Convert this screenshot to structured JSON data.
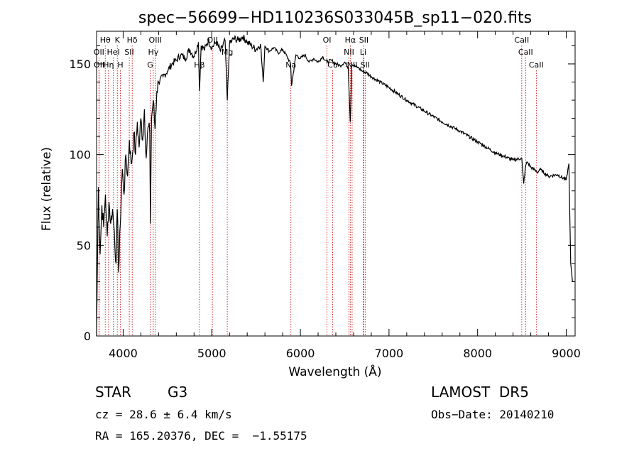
{
  "chart_data": {
    "type": "line",
    "title": "spec−56699−HD110236S033045B_sp11−020.fits",
    "xlabel": "Wavelength (Å)",
    "ylabel": "Flux (relative)",
    "xlim": [
      3700,
      9100
    ],
    "ylim": [
      0,
      168
    ],
    "xticks": [
      4000,
      5000,
      6000,
      7000,
      8000,
      9000
    ],
    "yticks": [
      0,
      50,
      100,
      150
    ],
    "grid": false,
    "series": [
      {
        "x": [
          3700,
          3720,
          3740,
          3760,
          3780,
          3800,
          3820,
          3840,
          3860,
          3880,
          3900,
          3920,
          3933,
          3950,
          3968,
          3990,
          4010,
          4030,
          4050,
          4070,
          4090,
          4102,
          4120,
          4140,
          4160,
          4180,
          4200,
          4220,
          4240,
          4260,
          4280,
          4300,
          4308,
          4320,
          4340,
          4360,
          4380,
          4400,
          4450,
          4500,
          4550,
          4600,
          4650,
          4700,
          4750,
          4800,
          4850,
          4861,
          4880,
          4920,
          4960,
          5000,
          5050,
          5100,
          5150,
          5175,
          5200,
          5250,
          5300,
          5350,
          5400,
          5450,
          5500,
          5550,
          5580,
          5600,
          5650,
          5700,
          5750,
          5800,
          5850,
          5890,
          5900,
          5950,
          6000,
          6050,
          6100,
          6150,
          6200,
          6250,
          6300,
          6350,
          6400,
          6450,
          6500,
          6540,
          6563,
          6580,
          6600,
          6650,
          6700,
          6750,
          6800,
          6900,
          7000,
          7200,
          7400,
          7600,
          7800,
          8000,
          8200,
          8400,
          8498,
          8520,
          8542,
          8560,
          8600,
          8662,
          8680,
          8700,
          8800,
          8900,
          9000,
          9030,
          9050,
          9070
        ],
        "values": [
          0,
          82,
          45,
          72,
          60,
          78,
          55,
          74,
          62,
          70,
          58,
          40,
          70,
          35,
          62,
          92,
          78,
          100,
          88,
          108,
          95,
          98,
          112,
          100,
          118,
          104,
          120,
          108,
          125,
          98,
          115,
          112,
          62,
          120,
          130,
          114,
          135,
          140,
          143,
          146,
          150,
          152,
          155,
          153,
          158,
          154,
          162,
          135,
          160,
          158,
          163,
          159,
          162,
          157,
          163,
          130,
          161,
          164,
          163,
          165,
          162,
          160,
          158,
          161,
          140,
          160,
          157,
          159,
          156,
          158,
          154,
          150,
          138,
          155,
          153,
          155,
          151,
          153,
          151,
          154,
          151,
          152,
          150,
          149,
          151,
          148,
          118,
          150,
          149,
          148,
          146,
          145,
          143,
          140,
          137,
          130,
          124,
          118,
          113,
          107,
          101,
          97,
          98,
          84,
          94,
          96,
          93,
          91,
          90,
          92,
          88,
          89,
          86,
          95,
          40,
          30
        ]
      }
    ],
    "spectral_lines": [
      {
        "label": "Hθ",
        "x": 3798,
        "row": 0
      },
      {
        "label": "K",
        "x": 3934,
        "row": 0
      },
      {
        "label": "Hδ",
        "x": 4102,
        "row": 0
      },
      {
        "label": "OIII",
        "x": 4363,
        "row": 0
      },
      {
        "label": "OII",
        "x": 5007,
        "row": 0
      },
      {
        "label": "OI",
        "x": 6300,
        "row": 0
      },
      {
        "label": "Hα",
        "x": 6563,
        "row": 0
      },
      {
        "label": "SII",
        "x": 6716,
        "row": 0
      },
      {
        "label": "CaII",
        "x": 8498,
        "row": 0
      },
      {
        "label": "OII",
        "x": 3727,
        "row": 1
      },
      {
        "label": "HeI",
        "x": 3889,
        "row": 1
      },
      {
        "label": "SII",
        "x": 4069,
        "row": 1
      },
      {
        "label": "Hγ",
        "x": 4340,
        "row": 1
      },
      {
        "label": "Mg",
        "x": 5175,
        "row": 1
      },
      {
        "label": "NII",
        "x": 6548,
        "row": 1
      },
      {
        "label": "Li",
        "x": 6708,
        "row": 1
      },
      {
        "label": "CaII",
        "x": 8542,
        "row": 1
      },
      {
        "label": "OII",
        "x": 3729,
        "row": 2
      },
      {
        "label": "Hη",
        "x": 3835,
        "row": 2
      },
      {
        "label": "H",
        "x": 3969,
        "row": 2
      },
      {
        "label": "G",
        "x": 4305,
        "row": 2
      },
      {
        "label": "Hβ",
        "x": 4861,
        "row": 2
      },
      {
        "label": "Na",
        "x": 5893,
        "row": 2
      },
      {
        "label": "Cu",
        "x": 6364,
        "row": 2
      },
      {
        "label": "NII",
        "x": 6584,
        "row": 2
      },
      {
        "label": "SII",
        "x": 6731,
        "row": 2
      },
      {
        "label": "CaII",
        "x": 8662,
        "row": 2
      }
    ],
    "line_marker_color": "#cc0000",
    "series_color": "#000000"
  },
  "info": {
    "object_type": "STAR",
    "subclass": "G3",
    "survey": "LAMOST  DR5",
    "cz": "cz = 28.6 ± 6.4 km/s",
    "obs_date": "Obs−Date: 20140210",
    "coords": "RA = 165.20376, DEC =  −1.55175"
  }
}
